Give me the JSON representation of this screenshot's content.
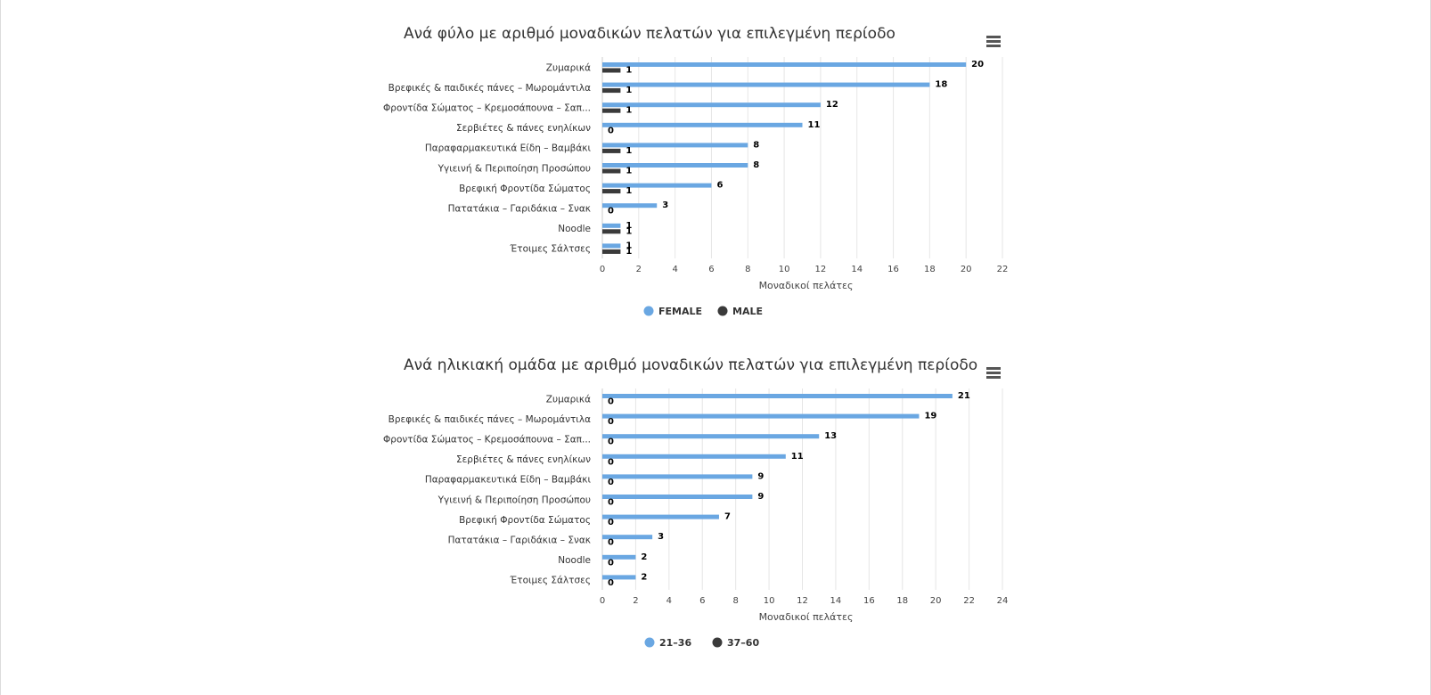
{
  "charts": [
    {
      "id": "chart-1",
      "title": "Ανά φύλο με αριθμό μοναδικών πελατών για επιλεγμένη περίοδο",
      "chart_data": {
        "type": "bar",
        "orientation": "horizontal",
        "title": "Ανά φύλο με αριθμό μοναδικών πελατών για επιλεγμένη περίοδο",
        "xlabel": "Μοναδικοί πελάτες",
        "ylabel": "",
        "categories": [
          "Ζυμαρικά",
          "Βρεφικές & παιδικές πάνες – Μωρομάντιλα",
          "Φροντίδα Σώματος – Κρεμοσάπουνα – Σαπ...",
          "Σερβιέτες & πάνες ενηλίκων",
          "Παραφαρμακευτικά Είδη – Βαμβάκι",
          "Υγιεινή & Περιποίηση Προσώπου",
          "Βρεφική Φροντίδα Σώματος",
          "Πατατάκια – Γαριδάκια – Σνακ",
          "Noodle",
          "Έτοιμες Σάλτσες"
        ],
        "series": [
          {
            "name": "FEMALE",
            "color": "#6aa7e2",
            "values": [
              20,
              18,
              12,
              11,
              8,
              8,
              6,
              3,
              1,
              1
            ]
          },
          {
            "name": "MALE",
            "color": "#3a3a3a",
            "values": [
              1,
              1,
              1,
              0,
              1,
              1,
              1,
              0,
              1,
              1
            ]
          }
        ],
        "xlim": [
          0,
          22
        ],
        "ticks": [
          0,
          2,
          4,
          6,
          8,
          10,
          12,
          14,
          16,
          18,
          20,
          22
        ],
        "grid": true,
        "legend": "bottom-center"
      }
    },
    {
      "id": "chart-2",
      "title": "Ανά ηλικιακή ομάδα με αριθμό μοναδικών πελατών για επιλεγμένη περίοδο",
      "chart_data": {
        "type": "bar",
        "orientation": "horizontal",
        "title": "Ανά ηλικιακή ομάδα με αριθμό μοναδικών πελατών για επιλεγμένη περίοδο",
        "xlabel": "Μοναδικοί πελάτες",
        "ylabel": "",
        "categories": [
          "Ζυμαρικά",
          "Βρεφικές & παιδικές πάνες – Μωρομάντιλα",
          "Φροντίδα Σώματος – Κρεμοσάπουνα – Σαπ...",
          "Σερβιέτες & πάνες ενηλίκων",
          "Παραφαρμακευτικά Είδη – Βαμβάκι",
          "Υγιεινή & Περιποίηση Προσώπου",
          "Βρεφική Φροντίδα Σώματος",
          "Πατατάκια – Γαριδάκια – Σνακ",
          "Noodle",
          "Έτοιμες Σάλτσες"
        ],
        "series": [
          {
            "name": "21–36",
            "color": "#6aa7e2",
            "values": [
              21,
              19,
              13,
              11,
              9,
              9,
              7,
              3,
              2,
              2
            ]
          },
          {
            "name": "37–60",
            "color": "#3a3a3a",
            "values": [
              0,
              0,
              0,
              0,
              0,
              0,
              0,
              0,
              0,
              0
            ]
          }
        ],
        "xlim": [
          0,
          24
        ],
        "ticks": [
          0,
          2,
          4,
          6,
          8,
          10,
          12,
          14,
          16,
          18,
          20,
          22,
          24
        ],
        "grid": true,
        "legend": "bottom-center"
      }
    }
  ],
  "menu_icon": "hamburger-menu-icon"
}
